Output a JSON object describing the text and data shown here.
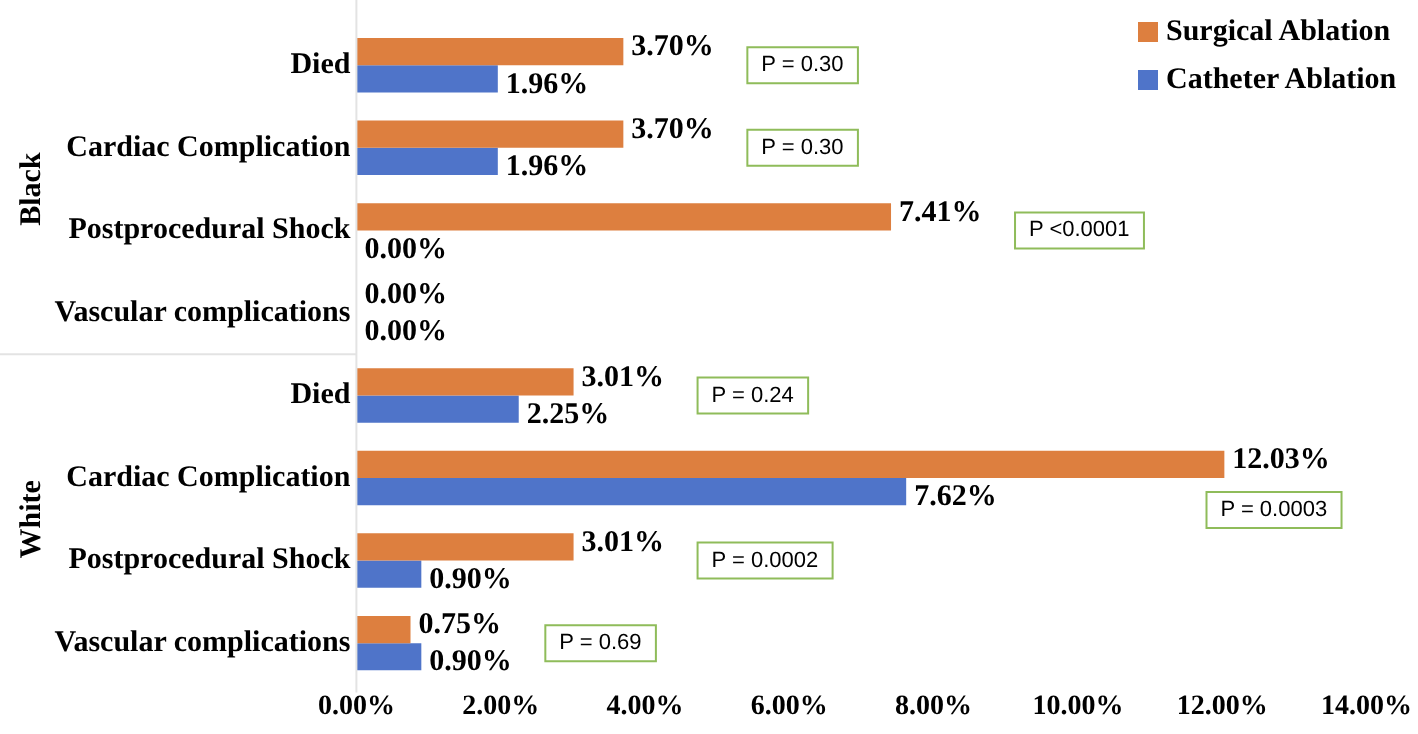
{
  "chart_data": {
    "type": "bar",
    "orientation": "horizontal",
    "categories": [
      "Died",
      "Cardiac Complication",
      "Postprocedural Shock",
      "Vascular complications",
      "Died",
      "Cardiac Complication",
      "Postprocedural Shock",
      "Vascular complications"
    ],
    "series": [
      {
        "name": "Surgical Ablation",
        "color": "#dd7f3f",
        "values": [
          3.7,
          3.7,
          7.41,
          0.0,
          3.01,
          12.03,
          3.01,
          0.75
        ],
        "value_labels": [
          "3.70%",
          "3.70%",
          "7.41%",
          "0.00%",
          "3.01%",
          "12.03%",
          "3.01%",
          "0.75%"
        ]
      },
      {
        "name": "Catheter Ablation",
        "color": "#4f74c9",
        "values": [
          1.96,
          1.96,
          0.0,
          0.0,
          2.25,
          7.62,
          0.9,
          0.9
        ],
        "value_labels": [
          "1.96%",
          "1.96%",
          "0.00%",
          "0.00%",
          "2.25%",
          "7.62%",
          "0.90%",
          "0.90%"
        ]
      }
    ],
    "xlim": [
      0,
      14
    ],
    "xticks": [
      {
        "value": 0,
        "label": "0.00%"
      },
      {
        "value": 2,
        "label": "2.00%"
      },
      {
        "value": 4,
        "label": "4.00%"
      },
      {
        "value": 6,
        "label": "6.00%"
      },
      {
        "value": 8,
        "label": "8.00%"
      },
      {
        "value": 10,
        "label": "10.00%"
      },
      {
        "value": 12,
        "label": "12.00%"
      },
      {
        "value": 14,
        "label": "14.00%"
      }
    ],
    "annotations": [
      "Black",
      "White",
      "P = 0.30",
      "P = 0.30",
      "P <0.0001",
      null,
      "P = 0.24",
      "P = 0.0003",
      "P = 0.0002",
      "P = 0.69"
    ],
    "legend": "top right",
    "grid": false
  }
}
